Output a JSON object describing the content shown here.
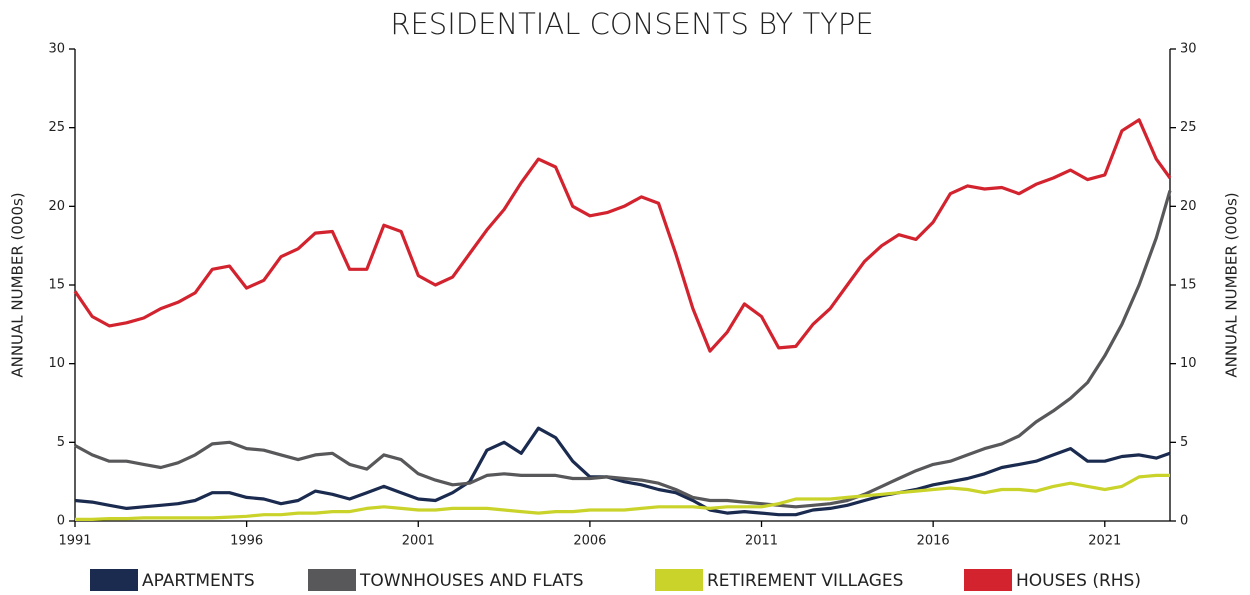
{
  "chart_data": {
    "type": "line",
    "title": "RESIDENTIAL CONSENTS BY TYPE",
    "y_label": "ANNUAL NUMBER (000s)",
    "y2_label": "ANNUAL NUMBER (000s)",
    "x": [
      1991,
      1991.5,
      1992,
      1992.5,
      1993,
      1993.5,
      1994,
      1994.5,
      1995,
      1995.5,
      1996,
      1996.5,
      1997,
      1997.5,
      1998,
      1998.5,
      1999,
      1999.5,
      2000,
      2000.5,
      2001,
      2001.5,
      2002,
      2002.5,
      2003,
      2003.5,
      2004,
      2004.5,
      2005,
      2005.5,
      2006,
      2006.5,
      2007,
      2007.5,
      2008,
      2008.5,
      2009,
      2009.5,
      2010,
      2010.5,
      2011,
      2011.5,
      2012,
      2012.5,
      2013,
      2013.5,
      2014,
      2014.5,
      2015,
      2015.5,
      2016,
      2016.5,
      2017,
      2017.5,
      2018,
      2018.5,
      2019,
      2019.5,
      2020,
      2020.5,
      2021,
      2021.5,
      2022,
      2022.5,
      2022.9
    ],
    "series": [
      {
        "name": "APARTMENTS",
        "color": "#1a2b4f",
        "values": [
          1.3,
          1.2,
          1.0,
          0.8,
          0.9,
          1.0,
          1.1,
          1.3,
          1.8,
          1.8,
          1.5,
          1.4,
          1.1,
          1.3,
          1.9,
          1.7,
          1.4,
          1.8,
          2.2,
          1.8,
          1.4,
          1.3,
          1.8,
          2.5,
          4.5,
          5.0,
          4.3,
          5.9,
          5.3,
          3.8,
          2.8,
          2.8,
          2.5,
          2.3,
          2.0,
          1.8,
          1.3,
          0.7,
          0.5,
          0.6,
          0.5,
          0.4,
          0.4,
          0.7,
          0.8,
          1.0,
          1.3,
          1.6,
          1.8,
          2.0,
          2.3,
          2.5,
          2.7,
          3.0,
          3.4,
          3.6,
          3.8,
          4.2,
          4.6,
          3.8,
          3.8,
          4.1,
          4.2,
          4.0,
          4.3
        ]
      },
      {
        "name": "TOWNHOUSES AND FLATS",
        "color": "#58585b",
        "values": [
          4.8,
          4.2,
          3.8,
          3.8,
          3.6,
          3.4,
          3.7,
          4.2,
          4.9,
          5.0,
          4.6,
          4.5,
          4.2,
          3.9,
          4.2,
          4.3,
          3.6,
          3.3,
          4.2,
          3.9,
          3.0,
          2.6,
          2.3,
          2.4,
          2.9,
          3.0,
          2.9,
          2.9,
          2.9,
          2.7,
          2.7,
          2.8,
          2.7,
          2.6,
          2.4,
          2.0,
          1.5,
          1.3,
          1.3,
          1.2,
          1.1,
          1.0,
          0.9,
          1.0,
          1.1,
          1.3,
          1.7,
          2.2,
          2.7,
          3.2,
          3.6,
          3.8,
          4.2,
          4.6,
          4.9,
          5.4,
          6.3,
          7.0,
          7.8,
          8.8,
          10.5,
          12.5,
          15.0,
          18.0,
          21.0
        ]
      },
      {
        "name": "RETIREMENT VILLAGES",
        "color": "#c9d32a",
        "values": [
          0.1,
          0.1,
          0.15,
          0.15,
          0.2,
          0.2,
          0.2,
          0.2,
          0.2,
          0.25,
          0.3,
          0.4,
          0.4,
          0.5,
          0.5,
          0.6,
          0.6,
          0.8,
          0.9,
          0.8,
          0.7,
          0.7,
          0.8,
          0.8,
          0.8,
          0.7,
          0.6,
          0.5,
          0.6,
          0.6,
          0.7,
          0.7,
          0.7,
          0.8,
          0.9,
          0.9,
          0.9,
          0.8,
          0.9,
          0.9,
          0.9,
          1.1,
          1.4,
          1.4,
          1.4,
          1.5,
          1.6,
          1.7,
          1.8,
          1.9,
          2.0,
          2.1,
          2.0,
          1.8,
          2.0,
          2.0,
          1.9,
          2.2,
          2.4,
          2.2,
          2.0,
          2.2,
          2.8,
          2.9,
          2.9
        ]
      },
      {
        "name": "HOUSES (RHS)",
        "color": "#d2232f",
        "axis": "y2",
        "values": [
          14.6,
          13.0,
          12.4,
          12.6,
          12.9,
          13.5,
          13.9,
          14.5,
          16.0,
          16.2,
          14.8,
          15.3,
          16.8,
          17.3,
          18.3,
          18.4,
          16.0,
          16.0,
          18.8,
          18.4,
          15.6,
          15.0,
          15.5,
          17.0,
          18.5,
          19.8,
          21.5,
          23.0,
          22.5,
          20.0,
          19.4,
          19.6,
          20.0,
          20.6,
          20.2,
          17.0,
          13.5,
          10.8,
          12.0,
          13.8,
          13.0,
          11.0,
          11.1,
          12.5,
          13.5,
          15.0,
          16.5,
          17.5,
          18.2,
          17.9,
          19.0,
          20.8,
          21.3,
          21.1,
          21.2,
          20.8,
          21.4,
          21.8,
          22.3,
          21.7,
          22.0,
          24.8,
          25.5,
          23.0,
          21.8
        ]
      }
    ],
    "xlim": [
      1991,
      2022.9
    ],
    "xticks": [
      1991,
      1996,
      2001,
      2006,
      2011,
      2016,
      2021
    ],
    "ylim": [
      0,
      30
    ],
    "yticks": [
      0,
      5,
      10,
      15,
      20,
      25,
      30
    ],
    "y2lim": [
      0,
      30
    ],
    "y2ticks": [
      0,
      5,
      10,
      15,
      20,
      25,
      30
    ],
    "grid": false,
    "legend": "bottom"
  }
}
